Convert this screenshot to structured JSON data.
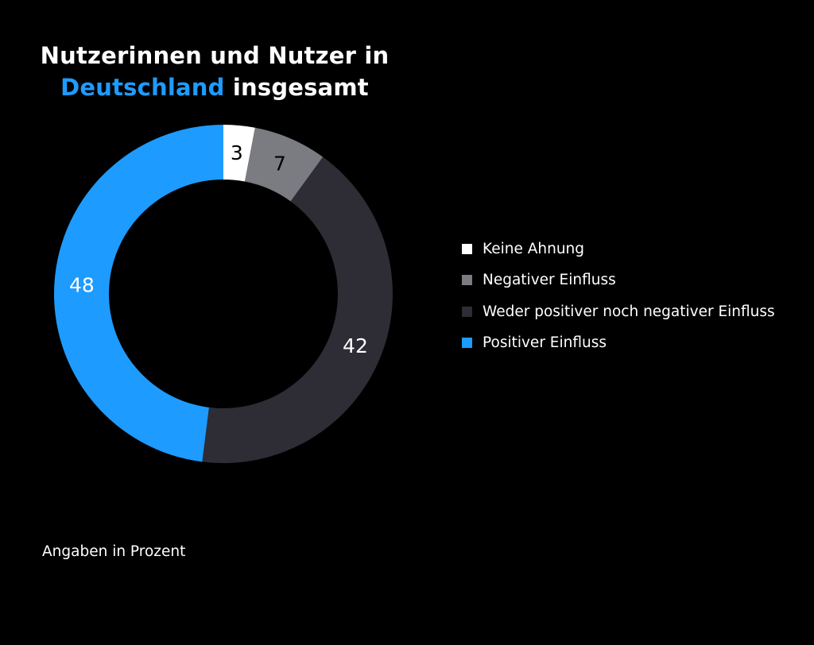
{
  "title": {
    "line1": "Nutzerinnen und Nutzer in",
    "highlight": "Deutschland",
    "rest": "insgesamt"
  },
  "footnote": "Angaben in Prozent",
  "colors": {
    "background": "#000000",
    "accent": "#1e9bff"
  },
  "chart_data": {
    "type": "pie",
    "variant": "donut",
    "unit": "Prozent",
    "legend_position": "right",
    "slices": [
      {
        "label": "Keine Ahnung",
        "value": 3,
        "color": "#ffffff",
        "label_color": "#000000"
      },
      {
        "label": "Negativer Einfluss",
        "value": 7,
        "color": "#7b7b82",
        "label_color": "#000000"
      },
      {
        "label": "Weder positiver noch negativer Einfluss",
        "value": 42,
        "color": "#2e2d35",
        "label_color": "#ffffff"
      },
      {
        "label": "Positiver Einfluss",
        "value": 48,
        "color": "#1e9bff",
        "label_color": "#ffffff"
      }
    ]
  }
}
